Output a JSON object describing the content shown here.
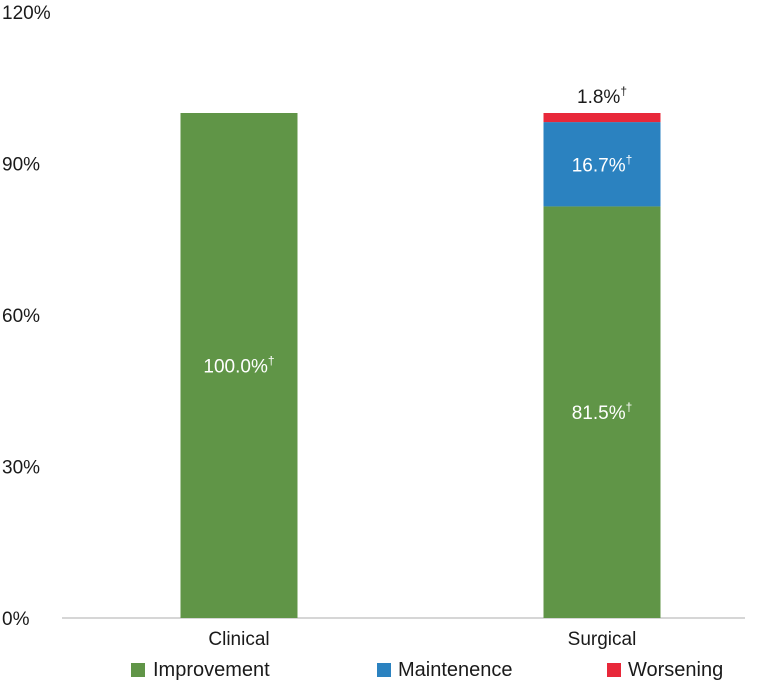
{
  "chart_data": {
    "type": "bar",
    "stacked": true,
    "categories": [
      "Clinical",
      "Surgical"
    ],
    "series": [
      {
        "name": "Improvement",
        "color": "#609547",
        "values": [
          100.0,
          81.5
        ],
        "labels": [
          "100.0%",
          "81.5%"
        ]
      },
      {
        "name": "Maintenence",
        "color": "#2b82c0",
        "values": [
          0,
          16.7
        ],
        "labels": [
          "",
          "16.7%"
        ]
      },
      {
        "name": "Worsening",
        "color": "#e8283a",
        "values": [
          0,
          1.8
        ],
        "labels": [
          "",
          "1.8%"
        ]
      }
    ],
    "label_marker": "†",
    "ylim": [
      0,
      120
    ],
    "yticks": [
      0,
      30,
      60,
      90,
      120
    ],
    "ytick_labels": [
      "0%",
      "30%",
      "60%",
      "90%",
      "120%"
    ],
    "legend_position": "bottom",
    "title": "",
    "xlabel": "",
    "ylabel": ""
  }
}
